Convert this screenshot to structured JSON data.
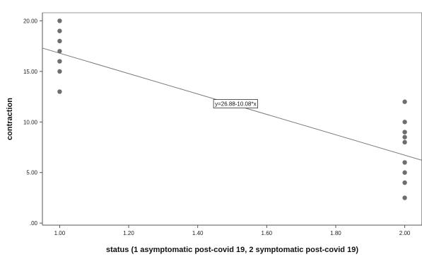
{
  "chart_data": {
    "type": "scatter",
    "xlabel": "status (1 asymptomatic post-covid 19, 2 symptomatic post-covid 19)",
    "ylabel": "contraction",
    "xlim": [
      0.95,
      2.05
    ],
    "ylim": [
      -0.2,
      20.8
    ],
    "x_ticks": [
      "1.00",
      "1.20",
      "1.40",
      "1.60",
      "1.80",
      "2.00"
    ],
    "y_ticks": [
      ".00",
      "5.00",
      "10.00",
      "15.00",
      "20.00"
    ],
    "x_tick_values": [
      1.0,
      1.2,
      1.4,
      1.6,
      1.8,
      2.0
    ],
    "y_tick_values": [
      0,
      5,
      10,
      15,
      20
    ],
    "grid": false,
    "points": [
      {
        "x": 1,
        "y": 20
      },
      {
        "x": 1,
        "y": 19
      },
      {
        "x": 1,
        "y": 18
      },
      {
        "x": 1,
        "y": 17
      },
      {
        "x": 1,
        "y": 16
      },
      {
        "x": 1,
        "y": 15
      },
      {
        "x": 1,
        "y": 13
      },
      {
        "x": 2,
        "y": 12
      },
      {
        "x": 2,
        "y": 10
      },
      {
        "x": 2,
        "y": 9
      },
      {
        "x": 2,
        "y": 8.5
      },
      {
        "x": 2,
        "y": 8
      },
      {
        "x": 2,
        "y": 6
      },
      {
        "x": 2,
        "y": 5
      },
      {
        "x": 2,
        "y": 4
      },
      {
        "x": 2,
        "y": 2.5
      }
    ],
    "fit_line": {
      "intercept": 26.88,
      "slope": -10.08,
      "label": "y=26.88-10.08*x",
      "label_x": 1.45,
      "label_y": 11.8
    },
    "colors": {
      "points": "#6e6e6e",
      "line": "#7a7a7a",
      "axis": "#555555"
    }
  }
}
